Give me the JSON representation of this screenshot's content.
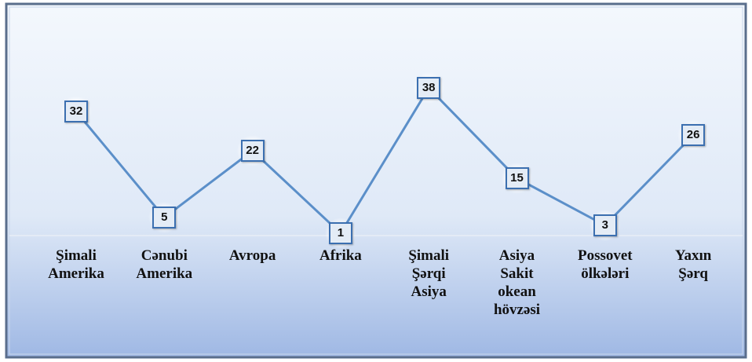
{
  "chart_data": {
    "type": "line",
    "categories": [
      "Şimali Amerika",
      "Cənubi Amerika",
      "Avropa",
      "Afrika",
      "Şimali Şərqi Asiya",
      "Asiya Sakit okean hövzəsi",
      "Possovet ölkələri",
      "Yaxın Şərq"
    ],
    "values": [
      32,
      5,
      22,
      1,
      38,
      15,
      3,
      26
    ],
    "color": "#5b8fc9"
  }
}
